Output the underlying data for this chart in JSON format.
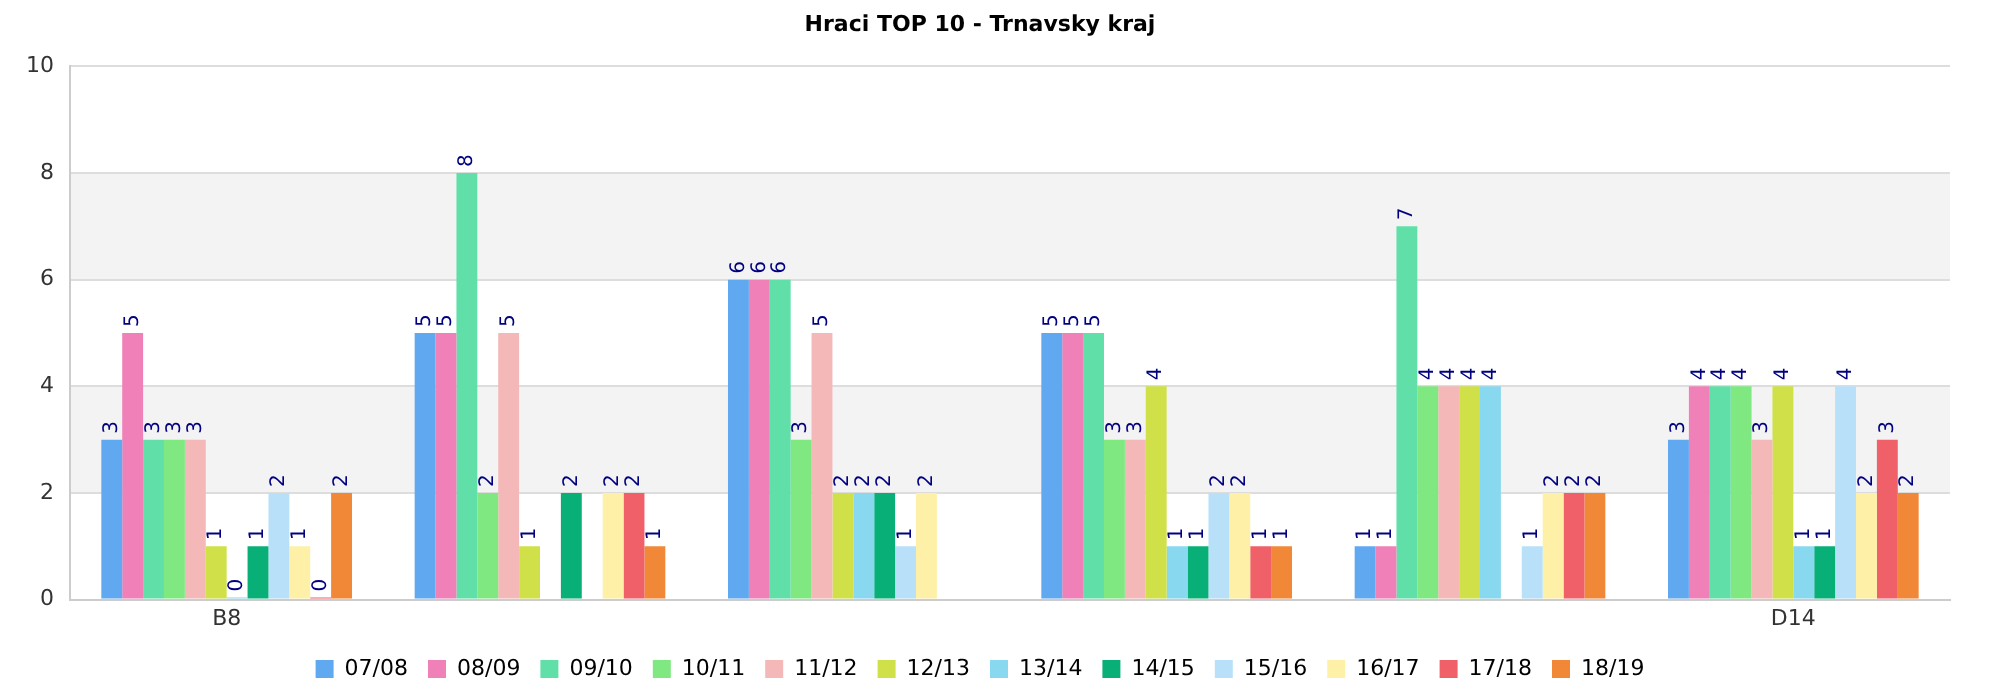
{
  "chart_data": {
    "type": "bar",
    "title": "Hraci TOP 10 - Trnavsky kraj",
    "categories": [
      "B8",
      null,
      null,
      null,
      null,
      "D14"
    ],
    "series": [
      {
        "name": "07/08",
        "color": "#60a8f0",
        "values": [
          3,
          5,
          6,
          5,
          1,
          3
        ]
      },
      {
        "name": "08/09",
        "color": "#f080b8",
        "values": [
          5,
          5,
          6,
          5,
          1,
          4
        ]
      },
      {
        "name": "09/10",
        "color": "#60e0a8",
        "values": [
          3,
          8,
          6,
          5,
          7,
          4
        ]
      },
      {
        "name": "10/11",
        "color": "#80e880",
        "values": [
          3,
          2,
          3,
          3,
          4,
          4
        ]
      },
      {
        "name": "11/12",
        "color": "#f4b8b8",
        "values": [
          3,
          5,
          5,
          3,
          4,
          3
        ]
      },
      {
        "name": "12/13",
        "color": "#d0e048",
        "values": [
          1,
          1,
          2,
          4,
          4,
          4
        ]
      },
      {
        "name": "13/14",
        "color": "#88d8f0",
        "values": [
          0,
          null,
          2,
          1,
          4,
          1
        ]
      },
      {
        "name": "14/15",
        "color": "#08b078",
        "values": [
          1,
          2,
          2,
          1,
          null,
          1
        ]
      },
      {
        "name": "15/16",
        "color": "#b8e0f8",
        "values": [
          2,
          null,
          1,
          2,
          1,
          4
        ]
      },
      {
        "name": "16/17",
        "color": "#fff0a8",
        "values": [
          1,
          2,
          2,
          2,
          2,
          2
        ]
      },
      {
        "name": "17/18",
        "color": "#f06068",
        "values": [
          0,
          2,
          null,
          1,
          2,
          3
        ]
      },
      {
        "name": "18/19",
        "color": "#f08838",
        "values": [
          2,
          1,
          null,
          1,
          2,
          2
        ]
      }
    ],
    "ylim": [
      0,
      10
    ],
    "yticks": [
      0,
      2,
      4,
      6,
      8,
      10
    ],
    "grid": "y",
    "legend": "bottom",
    "data_labels": true
  }
}
